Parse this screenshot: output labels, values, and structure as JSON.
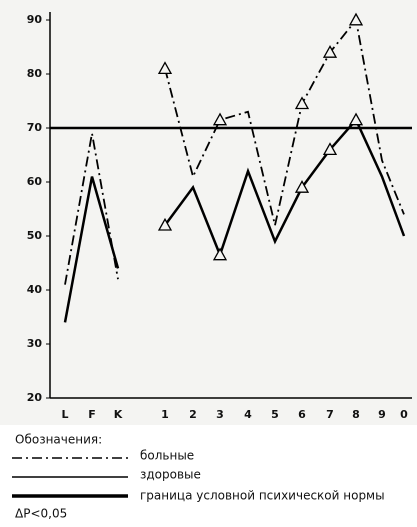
{
  "chart_data": {
    "type": "line",
    "categories": [
      "L",
      "F",
      "K",
      null,
      "1",
      "2",
      "3",
      "4",
      "5",
      "6",
      "7",
      "8",
      "9",
      "0"
    ],
    "series": [
      {
        "name": "больные",
        "color": "#000000",
        "dash": "dashdot",
        "values": [
          41,
          69,
          42,
          null,
          81,
          61,
          71.5,
          73,
          52,
          74.5,
          84,
          90,
          64,
          54
        ],
        "marked": [
          false,
          false,
          false,
          false,
          true,
          false,
          true,
          false,
          false,
          true,
          true,
          true,
          false,
          false
        ]
      },
      {
        "name": "здоровые",
        "color": "#000000",
        "dash": "solid",
        "values": [
          34,
          61,
          44,
          null,
          52,
          59,
          46.5,
          62,
          49,
          59,
          66,
          71.5,
          61,
          50
        ],
        "marked": [
          false,
          false,
          false,
          false,
          true,
          false,
          true,
          false,
          false,
          true,
          true,
          true,
          false,
          false
        ]
      }
    ],
    "norm": {
      "value": 70,
      "label": "граница условной психической нормы"
    },
    "legend_title": "Обозначения:",
    "marker_label": "ΔP<0,05",
    "ylim": [
      20,
      90
    ],
    "yticks": [
      20,
      30,
      40,
      50,
      60,
      70,
      80,
      90
    ]
  }
}
